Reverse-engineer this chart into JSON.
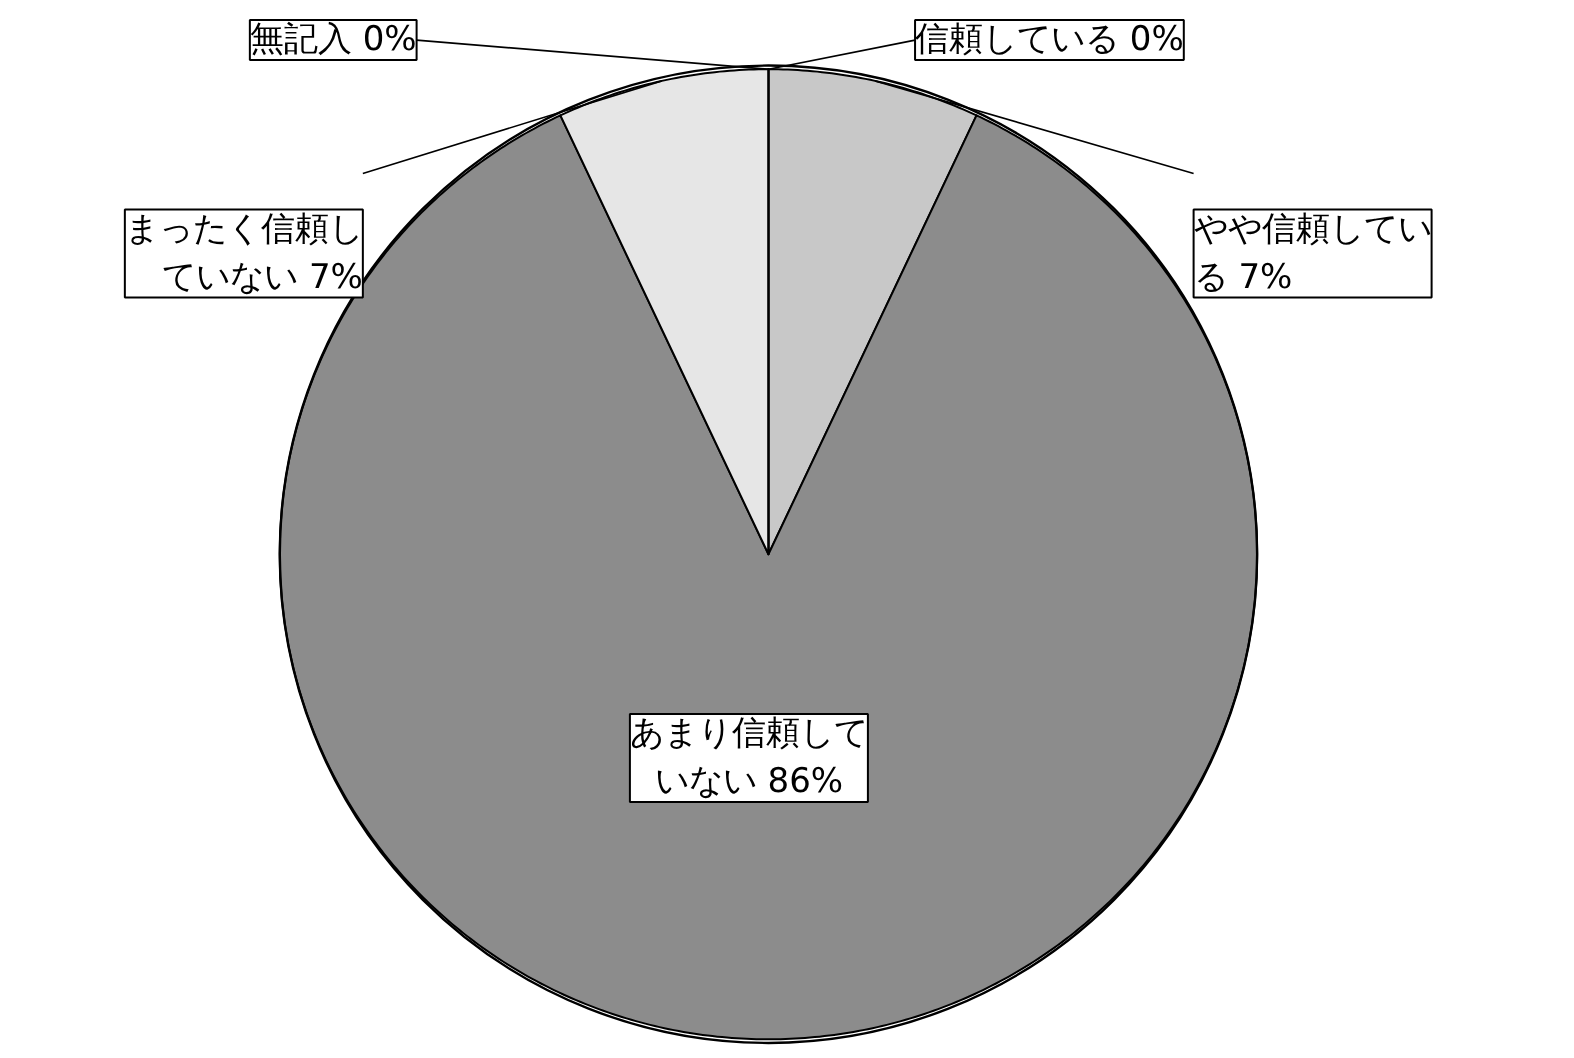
{
  "chart_data": {
    "type": "pie",
    "categories": [
      "信頼している",
      "やや信頼している",
      "あまり信頼していない",
      "まったく信頼していない",
      "無記入"
    ],
    "values": [
      0,
      7,
      86,
      7,
      0
    ],
    "colors": [
      "#ffffff",
      "#c8c8c8",
      "#8c8c8c",
      "#e6e6e6",
      "#ffffff"
    ],
    "value_labels": [
      "0%",
      "7%",
      "86%",
      "7%",
      "0%"
    ]
  }
}
